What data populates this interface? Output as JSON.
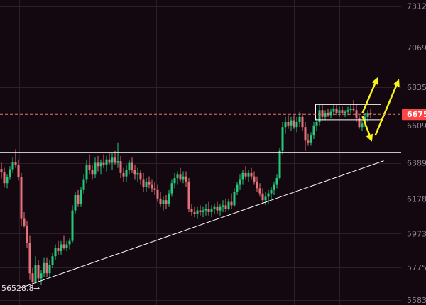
{
  "chart_data": {
    "type": "candlestick",
    "ylim": [
      55530,
      73480
    ],
    "y_axis_position": "right",
    "y_ticks": [
      55830,
      57750,
      59730,
      61780,
      63890,
      66090,
      68350,
      70690,
      73120
    ],
    "y_tick_labels": [
      "5583",
      "5775",
      "5973",
      "6178",
      "6389",
      "6609",
      "6835",
      "7069",
      "7312"
    ],
    "grid": true,
    "current_price": 66750,
    "current_price_label": "6675",
    "current_price_color": "#ff4444",
    "low_annotation": {
      "value": 56528.8,
      "label": "56528.8",
      "arrow": "→"
    },
    "colors": {
      "up": "#26c97a",
      "down": "#e8707a",
      "background": "#130710",
      "grid": "#2a1f2a",
      "trendline": "#ffffff",
      "arrow": "#f8f317"
    },
    "horizontal_lines": [
      {
        "value": 64510,
        "style": "solid"
      }
    ],
    "trendlines": [
      {
        "from": {
          "index": 7,
          "value": 56530
        },
        "to": {
          "index": 135,
          "value": 64020
        }
      }
    ],
    "consolidation_box": {
      "from_index": 111,
      "to_index": 134,
      "top": 67330,
      "bottom": 66430
    },
    "projection_arrows": [
      {
        "from": {
          "index": 127.5,
          "value": 66830
        },
        "to": {
          "index": 132.5,
          "value": 68780
        }
      },
      {
        "from": {
          "index": 127.5,
          "value": 66630
        },
        "to": {
          "index": 130.5,
          "value": 65300
        }
      },
      {
        "from": {
          "index": 132,
          "value": 65500
        },
        "to": {
          "index": 140,
          "value": 68670
        }
      }
    ],
    "candles": [
      {
        "o": 63540,
        "h": 63900,
        "l": 62980,
        "c": 63350
      },
      {
        "o": 63350,
        "h": 63600,
        "l": 62450,
        "c": 62700
      },
      {
        "o": 62700,
        "h": 63200,
        "l": 62400,
        "c": 63060
      },
      {
        "o": 63060,
        "h": 63700,
        "l": 62900,
        "c": 63520
      },
      {
        "o": 63520,
        "h": 64200,
        "l": 63300,
        "c": 63930
      },
      {
        "o": 63930,
        "h": 64700,
        "l": 63600,
        "c": 63790
      },
      {
        "o": 63790,
        "h": 64100,
        "l": 62860,
        "c": 63070
      },
      {
        "o": 63070,
        "h": 63300,
        "l": 60200,
        "c": 60600
      },
      {
        "o": 60600,
        "h": 61000,
        "l": 60100,
        "c": 60200
      },
      {
        "o": 60200,
        "h": 60500,
        "l": 58900,
        "c": 59200
      },
      {
        "o": 59200,
        "h": 59600,
        "l": 57000,
        "c": 57400
      },
      {
        "o": 57400,
        "h": 57700,
        "l": 56530,
        "c": 56900
      },
      {
        "o": 56900,
        "h": 58400,
        "l": 56800,
        "c": 57900
      },
      {
        "o": 57900,
        "h": 58200,
        "l": 56900,
        "c": 57100
      },
      {
        "o": 57100,
        "h": 57600,
        "l": 56700,
        "c": 57400
      },
      {
        "o": 57400,
        "h": 58300,
        "l": 57200,
        "c": 58000
      },
      {
        "o": 58000,
        "h": 58300,
        "l": 57200,
        "c": 57400
      },
      {
        "o": 57400,
        "h": 58200,
        "l": 57200,
        "c": 57900
      },
      {
        "o": 57900,
        "h": 58600,
        "l": 57700,
        "c": 58400
      },
      {
        "o": 58400,
        "h": 59100,
        "l": 58200,
        "c": 58900
      },
      {
        "o": 58900,
        "h": 59300,
        "l": 58500,
        "c": 58700
      },
      {
        "o": 58700,
        "h": 59300,
        "l": 58500,
        "c": 59100
      },
      {
        "o": 59100,
        "h": 59600,
        "l": 58800,
        "c": 58900
      },
      {
        "o": 58900,
        "h": 59300,
        "l": 58700,
        "c": 59100
      },
      {
        "o": 59100,
        "h": 59500,
        "l": 58800,
        "c": 59300
      },
      {
        "o": 59300,
        "h": 61400,
        "l": 59200,
        "c": 61100
      },
      {
        "o": 61100,
        "h": 62200,
        "l": 60900,
        "c": 62000
      },
      {
        "o": 62000,
        "h": 62300,
        "l": 61300,
        "c": 61500
      },
      {
        "o": 61500,
        "h": 62500,
        "l": 61300,
        "c": 62300
      },
      {
        "o": 62300,
        "h": 63200,
        "l": 62100,
        "c": 62900
      },
      {
        "o": 62900,
        "h": 64100,
        "l": 62700,
        "c": 63800
      },
      {
        "o": 63800,
        "h": 64400,
        "l": 63200,
        "c": 63500
      },
      {
        "o": 63500,
        "h": 63800,
        "l": 62900,
        "c": 63200
      },
      {
        "o": 63200,
        "h": 64200,
        "l": 63000,
        "c": 63900
      },
      {
        "o": 63900,
        "h": 64300,
        "l": 63400,
        "c": 63700
      },
      {
        "o": 63700,
        "h": 64100,
        "l": 63200,
        "c": 63900
      },
      {
        "o": 63900,
        "h": 64400,
        "l": 63600,
        "c": 63800
      },
      {
        "o": 63800,
        "h": 64300,
        "l": 63400,
        "c": 64100
      },
      {
        "o": 64100,
        "h": 64500,
        "l": 63800,
        "c": 63900
      },
      {
        "o": 63900,
        "h": 64500,
        "l": 63500,
        "c": 64200
      },
      {
        "o": 64200,
        "h": 64600,
        "l": 63800,
        "c": 63900
      },
      {
        "o": 63900,
        "h": 65100,
        "l": 63600,
        "c": 64000
      },
      {
        "o": 64000,
        "h": 64300,
        "l": 63000,
        "c": 63300
      },
      {
        "o": 63300,
        "h": 63600,
        "l": 62800,
        "c": 63100
      },
      {
        "o": 63100,
        "h": 63800,
        "l": 62800,
        "c": 63500
      },
      {
        "o": 63500,
        "h": 64100,
        "l": 63200,
        "c": 63900
      },
      {
        "o": 63900,
        "h": 64200,
        "l": 63300,
        "c": 63500
      },
      {
        "o": 63500,
        "h": 63800,
        "l": 62900,
        "c": 63200
      },
      {
        "o": 63200,
        "h": 63600,
        "l": 62800,
        "c": 63300
      },
      {
        "o": 63300,
        "h": 63500,
        "l": 62600,
        "c": 62900
      },
      {
        "o": 62900,
        "h": 63300,
        "l": 62200,
        "c": 62500
      },
      {
        "o": 62500,
        "h": 63000,
        "l": 62200,
        "c": 62800
      },
      {
        "o": 62800,
        "h": 63100,
        "l": 62400,
        "c": 62600
      },
      {
        "o": 62600,
        "h": 62900,
        "l": 62200,
        "c": 62400
      },
      {
        "o": 62400,
        "h": 62800,
        "l": 62000,
        "c": 62300
      },
      {
        "o": 62300,
        "h": 62600,
        "l": 61600,
        "c": 61800
      },
      {
        "o": 61800,
        "h": 62200,
        "l": 61300,
        "c": 61500
      },
      {
        "o": 61500,
        "h": 61900,
        "l": 61100,
        "c": 61700
      },
      {
        "o": 61700,
        "h": 62000,
        "l": 61200,
        "c": 61500
      },
      {
        "o": 61500,
        "h": 62300,
        "l": 61300,
        "c": 62100
      },
      {
        "o": 62100,
        "h": 62900,
        "l": 61900,
        "c": 62700
      },
      {
        "o": 62700,
        "h": 63300,
        "l": 62400,
        "c": 63000
      },
      {
        "o": 63000,
        "h": 63400,
        "l": 62600,
        "c": 63200
      },
      {
        "o": 63200,
        "h": 63600,
        "l": 62800,
        "c": 62900
      },
      {
        "o": 62900,
        "h": 63400,
        "l": 62700,
        "c": 63100
      },
      {
        "o": 63100,
        "h": 63400,
        "l": 62500,
        "c": 62800
      },
      {
        "o": 62800,
        "h": 63000,
        "l": 61000,
        "c": 61200
      },
      {
        "o": 61200,
        "h": 61500,
        "l": 60800,
        "c": 61000
      },
      {
        "o": 61000,
        "h": 61300,
        "l": 60700,
        "c": 60900
      },
      {
        "o": 60900,
        "h": 61300,
        "l": 60600,
        "c": 61100
      },
      {
        "o": 61100,
        "h": 61400,
        "l": 60800,
        "c": 61000
      },
      {
        "o": 61000,
        "h": 61300,
        "l": 60700,
        "c": 61100
      },
      {
        "o": 61100,
        "h": 61500,
        "l": 60800,
        "c": 61200
      },
      {
        "o": 61200,
        "h": 61600,
        "l": 60800,
        "c": 61000
      },
      {
        "o": 61000,
        "h": 61400,
        "l": 60700,
        "c": 61200
      },
      {
        "o": 61200,
        "h": 61500,
        "l": 60900,
        "c": 61300
      },
      {
        "o": 61300,
        "h": 61600,
        "l": 60900,
        "c": 61100
      },
      {
        "o": 61100,
        "h": 61500,
        "l": 60800,
        "c": 61300
      },
      {
        "o": 61300,
        "h": 61700,
        "l": 61000,
        "c": 61400
      },
      {
        "o": 61400,
        "h": 61800,
        "l": 61000,
        "c": 61200
      },
      {
        "o": 61200,
        "h": 61800,
        "l": 61100,
        "c": 61600
      },
      {
        "o": 61600,
        "h": 62100,
        "l": 61200,
        "c": 61400
      },
      {
        "o": 61400,
        "h": 62400,
        "l": 61300,
        "c": 62200
      },
      {
        "o": 62200,
        "h": 62800,
        "l": 62000,
        "c": 62600
      },
      {
        "o": 62600,
        "h": 63200,
        "l": 62300,
        "c": 62900
      },
      {
        "o": 62900,
        "h": 63500,
        "l": 62600,
        "c": 63300
      },
      {
        "o": 63300,
        "h": 63700,
        "l": 62900,
        "c": 63100
      },
      {
        "o": 63100,
        "h": 63500,
        "l": 62800,
        "c": 63300
      },
      {
        "o": 63300,
        "h": 63600,
        "l": 62900,
        "c": 63100
      },
      {
        "o": 63100,
        "h": 63400,
        "l": 62600,
        "c": 62800
      },
      {
        "o": 62800,
        "h": 63100,
        "l": 62200,
        "c": 62400
      },
      {
        "o": 62400,
        "h": 62700,
        "l": 61900,
        "c": 62100
      },
      {
        "o": 62100,
        "h": 62400,
        "l": 61500,
        "c": 61700
      },
      {
        "o": 61700,
        "h": 62200,
        "l": 61400,
        "c": 61900
      },
      {
        "o": 61900,
        "h": 62300,
        "l": 61500,
        "c": 62100
      },
      {
        "o": 62100,
        "h": 62500,
        "l": 61800,
        "c": 62300
      },
      {
        "o": 62300,
        "h": 62800,
        "l": 62000,
        "c": 62600
      },
      {
        "o": 62600,
        "h": 63200,
        "l": 62400,
        "c": 63000
      },
      {
        "o": 63000,
        "h": 64800,
        "l": 62900,
        "c": 64600
      },
      {
        "o": 64600,
        "h": 66300,
        "l": 64400,
        "c": 66000
      },
      {
        "o": 66000,
        "h": 66600,
        "l": 65600,
        "c": 66300
      },
      {
        "o": 66300,
        "h": 66700,
        "l": 65900,
        "c": 66100
      },
      {
        "o": 66100,
        "h": 66600,
        "l": 65800,
        "c": 66400
      },
      {
        "o": 66400,
        "h": 66700,
        "l": 65900,
        "c": 66000
      },
      {
        "o": 66000,
        "h": 66600,
        "l": 65700,
        "c": 66300
      },
      {
        "o": 66300,
        "h": 66900,
        "l": 66000,
        "c": 66600
      },
      {
        "o": 66600,
        "h": 66800,
        "l": 65800,
        "c": 66000
      },
      {
        "o": 66000,
        "h": 66300,
        "l": 64600,
        "c": 65200
      },
      {
        "o": 65200,
        "h": 65600,
        "l": 64900,
        "c": 65100
      },
      {
        "o": 65100,
        "h": 65700,
        "l": 64900,
        "c": 65500
      },
      {
        "o": 65500,
        "h": 66300,
        "l": 65300,
        "c": 66100
      },
      {
        "o": 66100,
        "h": 66500,
        "l": 65800,
        "c": 66300
      },
      {
        "o": 66300,
        "h": 67330,
        "l": 66100,
        "c": 67000
      },
      {
        "o": 67000,
        "h": 67300,
        "l": 66400,
        "c": 66600
      },
      {
        "o": 66600,
        "h": 67000,
        "l": 66400,
        "c": 66800
      },
      {
        "o": 66800,
        "h": 67100,
        "l": 66600,
        "c": 66700
      },
      {
        "o": 66700,
        "h": 67100,
        "l": 66500,
        "c": 66900
      },
      {
        "o": 66900,
        "h": 67300,
        "l": 66700,
        "c": 67100
      },
      {
        "o": 67100,
        "h": 67300,
        "l": 66700,
        "c": 66800
      },
      {
        "o": 66800,
        "h": 67200,
        "l": 66600,
        "c": 67000
      },
      {
        "o": 67000,
        "h": 67200,
        "l": 66700,
        "c": 66800
      },
      {
        "o": 66800,
        "h": 67000,
        "l": 66600,
        "c": 66900
      },
      {
        "o": 66900,
        "h": 67200,
        "l": 66700,
        "c": 67000
      },
      {
        "o": 67000,
        "h": 67300,
        "l": 66800,
        "c": 67100
      },
      {
        "o": 67100,
        "h": 67600,
        "l": 66900,
        "c": 67000
      },
      {
        "o": 67000,
        "h": 67300,
        "l": 66300,
        "c": 66500
      },
      {
        "o": 66500,
        "h": 66700,
        "l": 65900,
        "c": 66000
      },
      {
        "o": 66000,
        "h": 66400,
        "l": 65800,
        "c": 66200
      },
      {
        "o": 66200,
        "h": 66800,
        "l": 66000,
        "c": 66600
      },
      {
        "o": 66600,
        "h": 67000,
        "l": 66300,
        "c": 66800
      },
      {
        "o": 66800,
        "h": 67100,
        "l": 66500,
        "c": 66750
      }
    ]
  }
}
